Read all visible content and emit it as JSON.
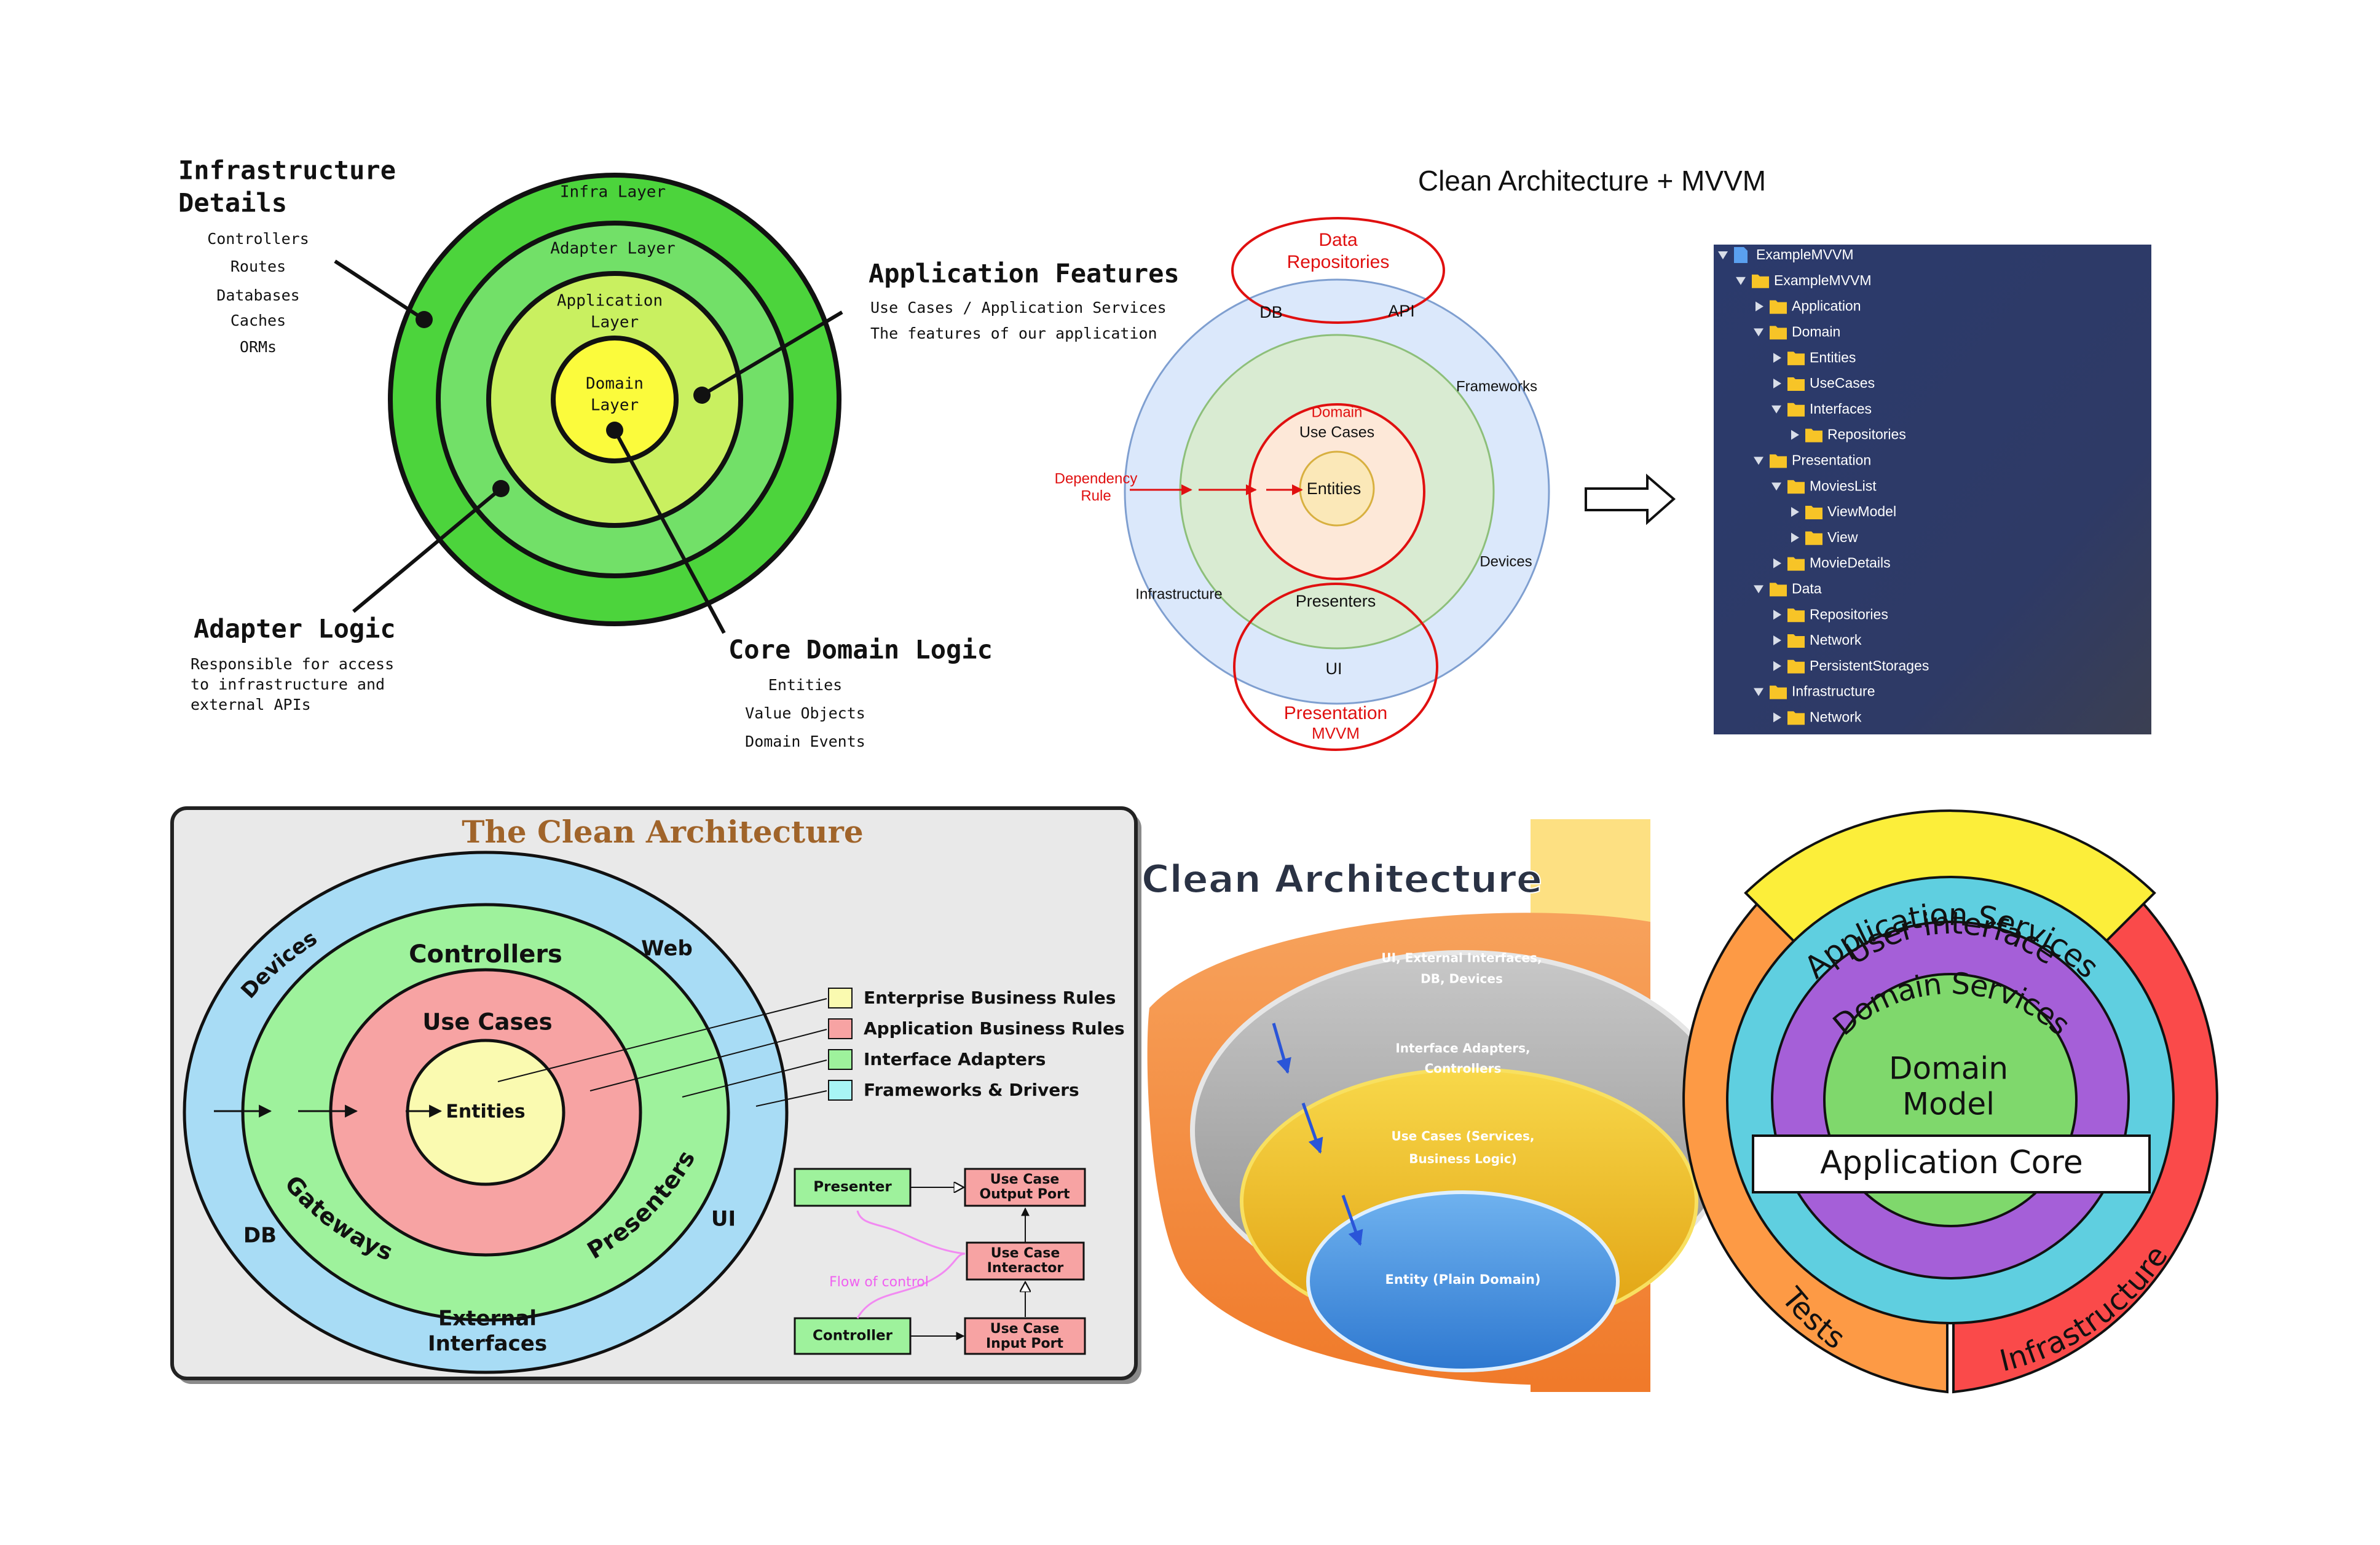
{
  "panel1": {
    "infra_title_line1": "Infrastructure",
    "infra_title_line2": "Details",
    "infra_items": [
      "Controllers",
      "Routes",
      "Databases",
      "Caches",
      "ORMs"
    ],
    "rings": {
      "infra": "Infra Layer",
      "adapter": "Adapter Layer",
      "application_line1": "Application",
      "application_line2": "Layer",
      "domain_line1": "Domain",
      "domain_line2": "Layer"
    },
    "app_features_title": "Application Features",
    "app_features_items": [
      "Use Cases / Application Services",
      "The features of our application"
    ],
    "adapter_title": "Adapter Logic",
    "adapter_items": [
      "Responsible for access",
      "to infrastructure and",
      "external APIs"
    ],
    "core_title": "Core Domain Logic",
    "core_items": [
      "Entities",
      "Value Objects",
      "Domain Events"
    ],
    "colors": {
      "infra": "#4cd43c",
      "adapter": "#72e068",
      "application": "#c9f060",
      "domain": "#fbfb3c"
    }
  },
  "panel2": {
    "title": "Clean Architecture + MVVM",
    "data_repos_line1": "Data",
    "data_repos_line2": "Repositories",
    "db": "DB",
    "api": "API",
    "frameworks": "Frameworks",
    "domain": "Domain",
    "use_cases": "Use Cases",
    "entities": "Entities",
    "dependency_line1": "Dependency",
    "dependency_line2": "Rule",
    "infrastructure": "Infrastructure",
    "devices": "Devices",
    "presenters": "Presenters",
    "ui": "UI",
    "presentation_line1": "Presentation",
    "presentation_line2": "MVVM"
  },
  "panel3": {
    "tree": [
      {
        "label": "ExampleMVVM",
        "depth": 0,
        "open": true,
        "file": true
      },
      {
        "label": "ExampleMVVM",
        "depth": 1,
        "open": true
      },
      {
        "label": "Application",
        "depth": 2,
        "open": false
      },
      {
        "label": "Domain",
        "depth": 2,
        "open": true
      },
      {
        "label": "Entities",
        "depth": 3,
        "open": false
      },
      {
        "label": "UseCases",
        "depth": 3,
        "open": false
      },
      {
        "label": "Interfaces",
        "depth": 3,
        "open": true
      },
      {
        "label": "Repositories",
        "depth": 4,
        "open": false
      },
      {
        "label": "Presentation",
        "depth": 2,
        "open": true
      },
      {
        "label": "MoviesList",
        "depth": 3,
        "open": true
      },
      {
        "label": "ViewModel",
        "depth": 4,
        "open": false
      },
      {
        "label": "View",
        "depth": 4,
        "open": false
      },
      {
        "label": "MovieDetails",
        "depth": 3,
        "open": false
      },
      {
        "label": "Data",
        "depth": 2,
        "open": true
      },
      {
        "label": "Repositories",
        "depth": 3,
        "open": false
      },
      {
        "label": "Network",
        "depth": 3,
        "open": false
      },
      {
        "label": "PersistentStorages",
        "depth": 3,
        "open": false
      },
      {
        "label": "Infrastructure",
        "depth": 2,
        "open": true
      },
      {
        "label": "Network",
        "depth": 3,
        "open": false
      }
    ]
  },
  "panel4": {
    "title": "The Clean Architecture",
    "devices": "Devices",
    "web": "Web",
    "controllers": "Controllers",
    "use_cases": "Use Cases",
    "entities": "Entities",
    "gateways": "Gateways",
    "presenters": "Presenters",
    "db": "DB",
    "ui": "UI",
    "external_line1": "External",
    "external_line2": "Interfaces",
    "legend": [
      {
        "label": "Enterprise Business Rules",
        "color": "#fafab0"
      },
      {
        "label": "Application Business Rules",
        "color": "#f7a3a3"
      },
      {
        "label": "Interface Adapters",
        "color": "#9ef29c"
      },
      {
        "label": "Frameworks & Drivers",
        "color": "#a8dcf5"
      }
    ],
    "presenter": "Presenter",
    "output_port_line1": "Use Case",
    "output_port_line2": "Output Port",
    "interactor_line1": "Use Case",
    "interactor_line2": "Interactor",
    "flow": "Flow of control",
    "controller": "Controller",
    "input_port_line1": "Use Case",
    "input_port_line2": "Input Port"
  },
  "panel5": {
    "title": "Clean Architecture",
    "layer1_line1": "UI, External Interfaces,",
    "layer1_line2": "DB, Devices",
    "layer2_line1": "Interface Adapters,",
    "layer2_line2": "Controllers",
    "layer3_line1": "Use Cases (Services,",
    "layer3_line2": "Business Logic)",
    "layer4": "Entity (Plain Domain)"
  },
  "panel6": {
    "user_interface": "User interface",
    "application_services": "Application Services",
    "domain_services": "Domain Services",
    "domain_line1": "Domain",
    "domain_line2": "Model",
    "application_core": "Application Core",
    "tests": "Tests",
    "infrastructure": "Infrastructure",
    "colors": {
      "ui": "#fcee3a",
      "tests": "#fd9a45",
      "infra": "#fa4a4a",
      "app_services": "#5fcfe0",
      "domain_services": "#a55fd8",
      "domain_model": "#7fd86c"
    }
  }
}
